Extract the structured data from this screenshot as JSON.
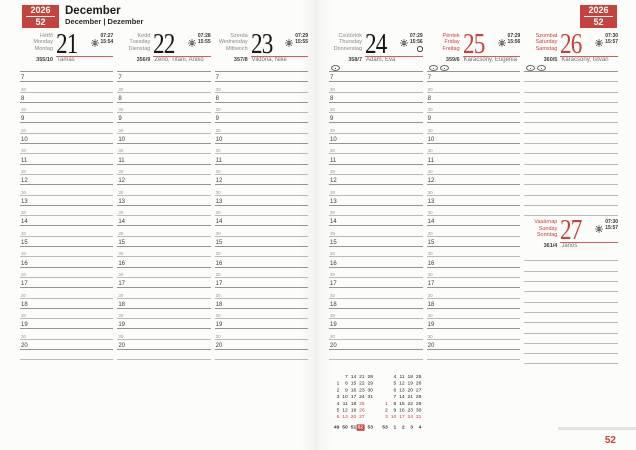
{
  "header": {
    "year": "2026",
    "week": "52",
    "month_title": "December",
    "month_subtitle": "December | Dezember"
  },
  "footer": {
    "week": "52"
  },
  "colors": {
    "accent": "#c5423d"
  },
  "icons": {
    "sun": "sunrise-sunset-icon",
    "moon": "full-moon-icon",
    "oval": "oval-symbol-icon"
  },
  "hours": [
    "7",
    "8",
    "9",
    "10",
    "11",
    "12",
    "13",
    "14",
    "15",
    "16",
    "17",
    "18",
    "19",
    "20"
  ],
  "half_label": "30",
  "days": [
    {
      "names": [
        "Hétfő",
        "Monday",
        "Montag"
      ],
      "date": "21",
      "sunrise": "07:27",
      "sunset": "15:54",
      "ordinal": "355/10",
      "namedays": "Tamás",
      "red": false,
      "moon": false,
      "symbols": 0
    },
    {
      "names": [
        "Kedd",
        "Tuesday",
        "Dienstag"
      ],
      "date": "22",
      "sunrise": "07:28",
      "sunset": "15:55",
      "ordinal": "356/9",
      "namedays": "Zénó, Tifani, Anikó",
      "red": false,
      "moon": false,
      "symbols": 0
    },
    {
      "names": [
        "Szerda",
        "Wednesday",
        "Mittwoch"
      ],
      "date": "23",
      "sunrise": "07:29",
      "sunset": "15:55",
      "ordinal": "357/8",
      "namedays": "Viktória, Niké",
      "red": false,
      "moon": false,
      "symbols": 0
    },
    {
      "names": [
        "Csütörtök",
        "Thursday",
        "Donnerstag"
      ],
      "date": "24",
      "sunrise": "07:29",
      "sunset": "15:56",
      "ordinal": "358/7",
      "namedays": "Ádám, Éva",
      "red": false,
      "moon": true,
      "symbols": 1
    },
    {
      "names": [
        "Péntek",
        "Friday",
        "Freitag"
      ],
      "date": "25",
      "sunrise": "07:29",
      "sunset": "15:56",
      "ordinal": "359/6",
      "namedays": "Karácsony, Eugénia",
      "red": true,
      "moon": false,
      "symbols": 2
    },
    {
      "names": [
        "Szombat",
        "Saturday",
        "Samstag"
      ],
      "date": "26",
      "sunrise": "07:30",
      "sunset": "15:57",
      "ordinal": "360/5",
      "namedays": "Karácsony, István",
      "red": true,
      "moon": false,
      "symbols": 2
    },
    {
      "names": [
        "Vasárnap",
        "Sunday",
        "Sonntag"
      ],
      "date": "27",
      "sunrise": "07:30",
      "sunset": "15:57",
      "ordinal": "361/4",
      "namedays": "János",
      "red": true,
      "moon": false,
      "symbols": 0
    }
  ],
  "layout_counts": {
    "saturday_lines": 14,
    "sunday_lines": 11
  },
  "mini_calendar": {
    "current_week": "52",
    "months": [
      {
        "rows": [
          [
            "",
            "7",
            "14",
            "21",
            "28"
          ],
          [
            "1",
            "8",
            "15",
            "22",
            "29"
          ],
          [
            "2",
            "9",
            "16",
            "23",
            "30"
          ],
          [
            "3",
            "10",
            "17",
            "24",
            "31"
          ],
          [
            "4",
            "11",
            "18",
            "25",
            ""
          ],
          [
            "5",
            "12",
            "19",
            "26",
            ""
          ],
          [
            "6",
            "13",
            "20",
            "27",
            ""
          ]
        ],
        "red": [
          "25",
          "26",
          "6",
          "13",
          "20",
          "27"
        ],
        "weeks": [
          "49",
          "50",
          "51",
          "52",
          "53"
        ]
      },
      {
        "rows": [
          [
            "",
            "4",
            "11",
            "18",
            "25"
          ],
          [
            "",
            "5",
            "12",
            "19",
            "26"
          ],
          [
            "",
            "6",
            "13",
            "20",
            "27"
          ],
          [
            "",
            "7",
            "14",
            "21",
            "28"
          ],
          [
            "1",
            "8",
            "15",
            "22",
            "29"
          ],
          [
            "2",
            "9",
            "16",
            "23",
            "30"
          ],
          [
            "3",
            "10",
            "17",
            "24",
            "31"
          ]
        ],
        "red": [
          "1",
          "3",
          "10",
          "17",
          "24",
          "31"
        ],
        "weeks": [
          "53",
          "1",
          "2",
          "3",
          "4"
        ]
      }
    ]
  }
}
